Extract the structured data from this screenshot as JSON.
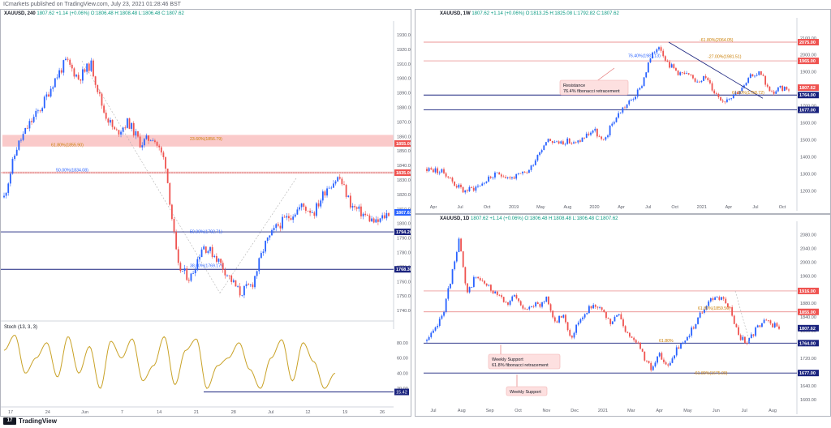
{
  "header": {
    "text": "ICmarkets published on TradingView.com, July 23, 2021 01:28:46 BST"
  },
  "footer": {
    "logo_glyph": "17",
    "brand": "TradingView"
  },
  "colors": {
    "up": "#2962ff",
    "down": "#ef5350",
    "hline_blue": "#1a237e",
    "hline_red": "#e57373",
    "zone": "#f8b8b8",
    "stoch": "#c9a227",
    "fib_text": "#c97d00"
  },
  "panels": [
    {
      "id": "p1",
      "title": "XAUUSD, 240",
      "ohlc": "1807.62 +1.14 (+0.06%) O:1806.48 H:1808.48 L:1806.48 C:1807.62",
      "badges": [
        {
          "text": "1855.08",
          "color": "#ef5350"
        },
        {
          "text": "1835.00",
          "color": "#ef5350"
        },
        {
          "text": "1807.62",
          "color": "#2962ff"
        },
        {
          "text": "1794.20",
          "color": "#1a237e"
        },
        {
          "text": "1768.38",
          "color": "#1a237e"
        }
      ],
      "fib_labels": [
        "61.80%(1855.90)",
        "23.60%(1856.79)",
        "50.00%(1834.08)",
        "50.00%(1792.71)",
        "38.60%(1769.17)"
      ],
      "stoch_label": "Stoch (13, 3, 3)",
      "stoch_badge": "15.42",
      "stoch_ticks": [
        "80.00",
        "60.00",
        "40.00",
        "20.00"
      ],
      "x_ticks": [
        "17",
        "24",
        "Jun",
        "7",
        "14",
        "21",
        "28",
        "Jul",
        "12",
        "19",
        "26"
      ]
    },
    {
      "id": "p2",
      "title": "XAUUSD, 1W",
      "ohlc": "1807.62 +1.14 (+0.06%) O:1813.25 H:1825.08 L:1792.82 C:1807.62",
      "badges": [
        {
          "text": "2075.00",
          "color": "#ef5350"
        },
        {
          "text": "1965.00",
          "color": "#ef5350"
        },
        {
          "text": "1807.62",
          "color": "#ef5350"
        },
        {
          "text": "1764.00",
          "color": "#1a237e"
        },
        {
          "text": "1677.00",
          "color": "#1a237e"
        }
      ],
      "fib_labels": [
        "-61.80%(2064.05)",
        "-27.00%(1981.51)",
        "76.40%(1981.13)",
        "61.80%(1758.72)"
      ],
      "annotation": [
        "Resistance",
        "76.4% fibonacci retracement"
      ],
      "x_ticks": [
        "Apr",
        "Jul",
        "Oct",
        "2019",
        "May",
        "Aug",
        "2020",
        "Apr",
        "Jul",
        "Oct",
        "2021",
        "Apr",
        "Jul",
        "Oct"
      ]
    },
    {
      "id": "p3",
      "title": "XAUUSD, 1D",
      "ohlc": "1807.62 +1.14 (+0.06%) O:1806.48 H:1808.48 L:1806.48 C:1807.62",
      "badges": [
        {
          "text": "1916.00",
          "color": "#ef5350"
        },
        {
          "text": "1855.00",
          "color": "#ef5350"
        },
        {
          "text": "1807.62",
          "color": "#1a237e"
        },
        {
          "text": "1764.00",
          "color": "#1a237e"
        },
        {
          "text": "1677.00",
          "color": "#1a237e"
        }
      ],
      "fib_labels": [
        "61.80%(1859.50)",
        "61.80%",
        "-61.80%(1675.00)"
      ],
      "annotation1": [
        "Weekly Support",
        "61.8% fibonacci retracement"
      ],
      "annotation2": [
        "Weekly Support"
      ],
      "x_ticks": [
        "Jul",
        "Aug",
        "Sep",
        "Oct",
        "Nov",
        "Dec",
        "2021",
        "Mar",
        "Apr",
        "May",
        "Jun",
        "Jul",
        "Aug"
      ]
    }
  ],
  "chart_data": [
    {
      "type": "line",
      "title": "XAUUSD, 240",
      "series": [],
      "x": [
        "17",
        "24",
        "Jun",
        "7",
        "14",
        "21",
        "28",
        "Jul",
        "12",
        "19",
        "26"
      ],
      "price_path": [
        1818,
        1852,
        1868,
        1880,
        1898,
        1912,
        1900,
        1910,
        1878,
        1862,
        1870,
        1855,
        1860,
        1842,
        1770,
        1762,
        1785,
        1778,
        1765,
        1752,
        1758,
        1785,
        1798,
        1805,
        1812,
        1808,
        1825,
        1832,
        1812,
        1806,
        1800,
        1807.62
      ],
      "ylim": [
        1735,
        1935
      ],
      "y_ticks": [
        1930,
        1920,
        1910,
        1900,
        1890,
        1880,
        1870,
        1860,
        1850,
        1840,
        1830,
        1820,
        1810,
        1800,
        1790,
        1780,
        1770,
        1760,
        1750,
        1740
      ],
      "levels": [
        {
          "value": 1855.08,
          "kind": "zone_top"
        },
        {
          "value": 1835.0,
          "kind": "resistance"
        },
        {
          "value": 1794.2,
          "kind": "support"
        },
        {
          "value": 1768.38,
          "kind": "support"
        }
      ],
      "stoch": {
        "ylim": [
          0,
          100
        ],
        "values": [
          70,
          90,
          40,
          60,
          80,
          35,
          88,
          40,
          75,
          20,
          82,
          60,
          85,
          30,
          50,
          88,
          25,
          70,
          85,
          20,
          50,
          60,
          80,
          45,
          20,
          60,
          84,
          30,
          80,
          55,
          20,
          40
        ],
        "level": 15.42
      }
    },
    {
      "type": "line",
      "title": "XAUUSD, 1W",
      "x": [
        "Apr",
        "Jul",
        "Oct",
        "2019",
        "May",
        "Aug",
        "2020",
        "Apr",
        "Jul",
        "Oct",
        "2021",
        "Apr",
        "Jul",
        "Oct"
      ],
      "price_path": [
        1330,
        1320,
        1305,
        1240,
        1200,
        1215,
        1245,
        1285,
        1300,
        1275,
        1290,
        1320,
        1420,
        1510,
        1480,
        1495,
        1475,
        1520,
        1560,
        1480,
        1600,
        1680,
        1730,
        1800,
        1970,
        2060,
        1950,
        1900,
        1880,
        1850,
        1870,
        1780,
        1730,
        1770,
        1800,
        1880,
        1900,
        1770,
        1800,
        1807.62
      ],
      "ylim": [
        1150,
        2180
      ],
      "y_ticks": [
        2100,
        2000,
        1900,
        1800,
        1700,
        1600,
        1500,
        1400,
        1300,
        1200
      ],
      "levels": [
        {
          "value": 2075.0,
          "kind": "resistance"
        },
        {
          "value": 1965.0,
          "kind": "resistance"
        },
        {
          "value": 1764.0,
          "kind": "support"
        },
        {
          "value": 1677.0,
          "kind": "support"
        }
      ]
    },
    {
      "type": "line",
      "title": "XAUUSD, 1D",
      "x": [
        "Jul",
        "Aug",
        "Sep",
        "Oct",
        "Nov",
        "Dec",
        "2021",
        "Mar",
        "Apr",
        "May",
        "Jun",
        "Jul",
        "Aug"
      ],
      "price_path": [
        1770,
        1800,
        1850,
        1950,
        2070,
        1900,
        1960,
        1940,
        1920,
        1910,
        1880,
        1900,
        1860,
        1880,
        1870,
        1900,
        1820,
        1850,
        1780,
        1830,
        1860,
        1880,
        1850,
        1820,
        1850,
        1790,
        1780,
        1730,
        1690,
        1730,
        1690,
        1740,
        1760,
        1800,
        1840,
        1880,
        1900,
        1890,
        1860,
        1780,
        1770,
        1800,
        1830,
        1820,
        1807.62
      ],
      "ylim": [
        1590,
        2100
      ],
      "y_ticks": [
        2080,
        2040,
        2000,
        1960,
        1920,
        1880,
        1840,
        1800,
        1760,
        1720,
        1680,
        1640,
        1600
      ],
      "levels": [
        {
          "value": 1916.0,
          "kind": "resistance"
        },
        {
          "value": 1855.0,
          "kind": "resistance"
        },
        {
          "value": 1764.0,
          "kind": "support"
        },
        {
          "value": 1677.0,
          "kind": "support"
        }
      ]
    }
  ]
}
